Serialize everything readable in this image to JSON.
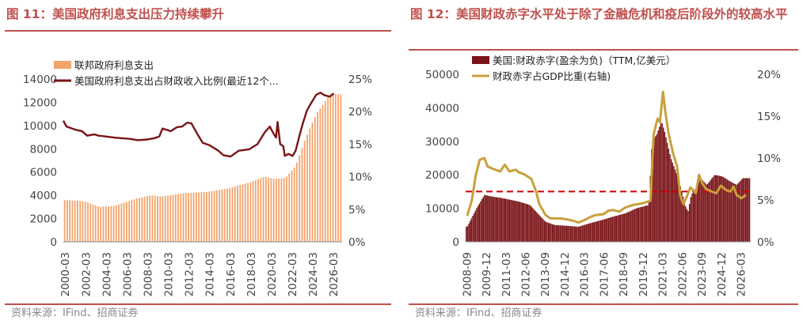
{
  "left": {
    "title": "图 11：美国政府利息支出压力持续攀升",
    "source": "资料来源：IFind、招商证券",
    "chart_data": {
      "type": "bar",
      "legend": [
        {
          "name": "联邦政府利息支出",
          "color": "#f2a36b",
          "kind": "bar"
        },
        {
          "name": "美国政府利息支出占财政收入比例(最近12个...",
          "color": "#7a1418",
          "kind": "line"
        }
      ],
      "ylim_left": [
        0,
        14000
      ],
      "yticks_left": [
        "0",
        "2000",
        "4000",
        "6000",
        "8000",
        "10000",
        "12000",
        "14000"
      ],
      "ylim_right": [
        0,
        25
      ],
      "yticks_right": [
        "0%",
        "5%",
        "10%",
        "15%",
        "20%",
        "25%"
      ],
      "xlim": [
        2000.0,
        2027.0
      ],
      "xticks": [
        "2000-03",
        "2002-03",
        "2004-03",
        "2006-03",
        "2008-03",
        "2010-03",
        "2012-03",
        "2014-03",
        "2016-03",
        "2018-03",
        "2020-03",
        "2022-03",
        "2024-03",
        "2026-03"
      ],
      "bar_anchors": [
        [
          2000.0,
          3600
        ],
        [
          2002.0,
          3500
        ],
        [
          2003.5,
          3000
        ],
        [
          2005.0,
          3100
        ],
        [
          2007.0,
          3700
        ],
        [
          2008.5,
          4000
        ],
        [
          2009.5,
          3900
        ],
        [
          2011.0,
          4100
        ],
        [
          2012.0,
          4200
        ],
        [
          2014.0,
          4300
        ],
        [
          2016.0,
          4600
        ],
        [
          2018.0,
          5100
        ],
        [
          2019.5,
          5600
        ],
        [
          2020.5,
          5400
        ],
        [
          2021.5,
          5500
        ],
        [
          2022.5,
          6500
        ],
        [
          2023.5,
          9000
        ],
        [
          2024.5,
          11000
        ],
        [
          2025.7,
          12500
        ],
        [
          2026.3,
          12700
        ]
      ],
      "line_anchors": [
        [
          2000.0,
          18.6
        ],
        [
          2000.3,
          17.7
        ],
        [
          2001.2,
          17.2
        ],
        [
          2001.8,
          17.0
        ],
        [
          2002.3,
          16.3
        ],
        [
          2003.0,
          16.5
        ],
        [
          2003.4,
          16.3
        ],
        [
          2004.0,
          16.2
        ],
        [
          2005.0,
          16.0
        ],
        [
          2006.5,
          15.8
        ],
        [
          2007.2,
          15.6
        ],
        [
          2008.0,
          15.7
        ],
        [
          2008.8,
          15.9
        ],
        [
          2009.3,
          16.2
        ],
        [
          2009.6,
          17.4
        ],
        [
          2010.4,
          17.0
        ],
        [
          2011.0,
          17.6
        ],
        [
          2011.5,
          17.7
        ],
        [
          2012.0,
          18.3
        ],
        [
          2012.4,
          18.2
        ],
        [
          2013.0,
          16.5
        ],
        [
          2013.5,
          15.2
        ],
        [
          2014.2,
          14.8
        ],
        [
          2015.0,
          14.0
        ],
        [
          2015.5,
          13.3
        ],
        [
          2016.2,
          13.1
        ],
        [
          2017.0,
          14.0
        ],
        [
          2018.0,
          14.2
        ],
        [
          2018.8,
          15.0
        ],
        [
          2019.5,
          16.8
        ],
        [
          2020.0,
          17.7
        ],
        [
          2020.3,
          16.8
        ],
        [
          2020.6,
          16.0
        ],
        [
          2020.75,
          18.4
        ],
        [
          2021.0,
          15.0
        ],
        [
          2021.3,
          14.7
        ],
        [
          2021.45,
          13.2
        ],
        [
          2021.8,
          13.5
        ],
        [
          2022.2,
          13.2
        ],
        [
          2022.5,
          14.0
        ],
        [
          2022.9,
          16.5
        ],
        [
          2023.2,
          18.2
        ],
        [
          2023.6,
          20.2
        ],
        [
          2024.0,
          21.3
        ],
        [
          2024.5,
          22.6
        ],
        [
          2024.9,
          22.9
        ],
        [
          2025.3,
          22.5
        ],
        [
          2025.8,
          22.3
        ],
        [
          2026.2,
          22.8
        ]
      ]
    }
  },
  "right": {
    "title": "图 12：美国财政赤字水平处于除了金融危机和疫后阶段外的较高水平",
    "source": "资料来源：IFind、招商证券",
    "chart_data": {
      "type": "bar",
      "legend": [
        {
          "name": "美国:财政赤字(盈余为负)（TTM,亿美元）",
          "color": "#7a1418",
          "kind": "bar"
        },
        {
          "name": "财政赤字占GDP比重(右轴)",
          "color": "#c8a03c",
          "kind": "line"
        }
      ],
      "ylim_left": [
        0,
        50000
      ],
      "yticks_left": [
        "0",
        "10000",
        "20000",
        "30000",
        "40000",
        "50000"
      ],
      "ylim_right": [
        0,
        20
      ],
      "yticks_right": [
        "0%",
        "5%",
        "10%",
        "15%",
        "20%"
      ],
      "xlim": [
        2008.6,
        2026.8
      ],
      "xticks": [
        "2008-09",
        "2009-12",
        "2011-03",
        "2012-06",
        "2013-09",
        "2014-12",
        "2016-03",
        "2017-06",
        "2018-09",
        "2019-12",
        "2021-03",
        "2022-06",
        "2023-09",
        "2024-12",
        "2026-03"
      ],
      "reference_line": {
        "value": 15000,
        "style": "dashed",
        "color": "#cc0000"
      },
      "bar_anchors": [
        [
          2008.7,
          4500
        ],
        [
          2009.3,
          10000
        ],
        [
          2009.8,
          14000
        ],
        [
          2010.3,
          13500
        ],
        [
          2011.0,
          13000
        ],
        [
          2012.0,
          12000
        ],
        [
          2012.7,
          11000
        ],
        [
          2013.2,
          8500
        ],
        [
          2013.7,
          6000
        ],
        [
          2014.3,
          5000
        ],
        [
          2015.0,
          4800
        ],
        [
          2015.8,
          4500
        ],
        [
          2016.5,
          5500
        ],
        [
          2017.3,
          6500
        ],
        [
          2018.0,
          7500
        ],
        [
          2018.8,
          8500
        ],
        [
          2019.5,
          10000
        ],
        [
          2019.9,
          10500
        ],
        [
          2020.3,
          11000
        ],
        [
          2020.5,
          30000
        ],
        [
          2020.8,
          32000
        ],
        [
          2021.1,
          36000
        ],
        [
          2021.3,
          33000
        ],
        [
          2021.7,
          25000
        ],
        [
          2022.1,
          20000
        ],
        [
          2022.4,
          15000
        ],
        [
          2022.6,
          11000
        ],
        [
          2022.8,
          9000
        ],
        [
          2023.0,
          14000
        ],
        [
          2023.3,
          16000
        ],
        [
          2023.6,
          19000
        ],
        [
          2024.0,
          17000
        ],
        [
          2024.5,
          20000
        ],
        [
          2025.0,
          19500
        ],
        [
          2025.5,
          18000
        ],
        [
          2025.9,
          17000
        ],
        [
          2026.3,
          19000
        ]
      ],
      "line_anchors": [
        [
          2008.7,
          3.1
        ],
        [
          2009.0,
          5.0
        ],
        [
          2009.25,
          8.0
        ],
        [
          2009.5,
          9.8
        ],
        [
          2009.8,
          10.0
        ],
        [
          2010.0,
          9.0
        ],
        [
          2010.5,
          8.6
        ],
        [
          2010.8,
          8.4
        ],
        [
          2011.1,
          9.2
        ],
        [
          2011.4,
          8.4
        ],
        [
          2011.8,
          8.6
        ],
        [
          2012.0,
          8.3
        ],
        [
          2012.4,
          8.0
        ],
        [
          2012.8,
          7.5
        ],
        [
          2013.1,
          6.0
        ],
        [
          2013.3,
          4.5
        ],
        [
          2013.7,
          3.2
        ],
        [
          2014.0,
          2.8
        ],
        [
          2014.6,
          2.8
        ],
        [
          2015.0,
          2.7
        ],
        [
          2015.5,
          2.5
        ],
        [
          2015.8,
          2.3
        ],
        [
          2016.2,
          2.6
        ],
        [
          2016.6,
          3.0
        ],
        [
          2016.9,
          3.2
        ],
        [
          2017.4,
          3.3
        ],
        [
          2017.7,
          3.7
        ],
        [
          2018.0,
          3.8
        ],
        [
          2018.4,
          3.6
        ],
        [
          2018.8,
          4.1
        ],
        [
          2019.3,
          4.4
        ],
        [
          2019.9,
          4.6
        ],
        [
          2020.4,
          4.9
        ],
        [
          2020.6,
          12.8
        ],
        [
          2020.85,
          14.7
        ],
        [
          2021.0,
          14.3
        ],
        [
          2021.2,
          17.9
        ],
        [
          2021.35,
          15.5
        ],
        [
          2021.55,
          13.0
        ],
        [
          2021.85,
          10.5
        ],
        [
          2022.1,
          9.0
        ],
        [
          2022.3,
          5.5
        ],
        [
          2022.5,
          4.5
        ],
        [
          2022.7,
          5.3
        ],
        [
          2022.95,
          6.5
        ],
        [
          2023.3,
          5.8
        ],
        [
          2023.5,
          8.0
        ],
        [
          2023.7,
          7.0
        ],
        [
          2023.95,
          6.3
        ],
        [
          2024.3,
          6.0
        ],
        [
          2024.6,
          5.8
        ],
        [
          2024.9,
          6.7
        ],
        [
          2025.2,
          6.2
        ],
        [
          2025.5,
          6.0
        ],
        [
          2025.7,
          6.6
        ],
        [
          2025.9,
          5.6
        ],
        [
          2026.2,
          5.2
        ],
        [
          2026.5,
          5.6
        ]
      ]
    }
  }
}
